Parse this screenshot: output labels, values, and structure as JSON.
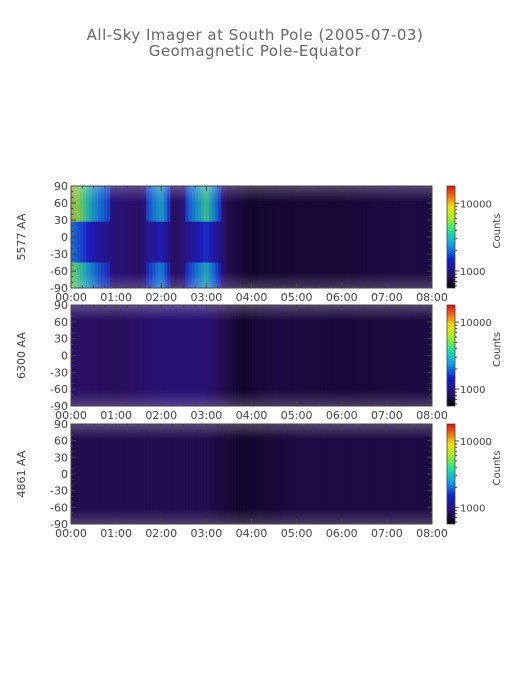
{
  "title": "All-Sky Imager at South Pole (2005-07-03)",
  "subtitle": "Geomagnetic Pole-Equator",
  "colors": {
    "background": "#2a1060",
    "dark_band": "#0a0418",
    "axis": "#444444"
  },
  "chart_data": [
    {
      "type": "heatmap",
      "ylabel": "5577 AA",
      "yticks": [
        "90",
        "60",
        "30",
        "0",
        "-30",
        "-60",
        "-90"
      ],
      "ylim": [
        -90,
        90
      ],
      "xticks": [
        "00:00",
        "01:00",
        "02:00",
        "03:00",
        "04:00",
        "05:00",
        "06:00",
        "07:00",
        "08:00"
      ],
      "xlim": [
        "00:00",
        "08:00"
      ],
      "colorbar": {
        "label": "Counts",
        "ticks": [
          "10000",
          "1000"
        ],
        "scale": "log"
      },
      "intensity_profile": [
        {
          "t": 0.0,
          "v": 0.85
        },
        {
          "t": 0.3,
          "v": 0.7
        },
        {
          "t": 0.6,
          "v": 0.5
        },
        {
          "t": 1.0,
          "v": 0.35
        },
        {
          "t": 1.5,
          "v": 0.3
        },
        {
          "t": 2.0,
          "v": 0.6
        },
        {
          "t": 2.3,
          "v": 0.25
        },
        {
          "t": 3.0,
          "v": 0.7
        },
        {
          "t": 3.5,
          "v": 0.2
        },
        {
          "t": 4.0,
          "v": 0.05
        },
        {
          "t": 5.0,
          "v": 0.1
        },
        {
          "t": 6.0,
          "v": 0.1
        },
        {
          "t": 7.0,
          "v": 0.15
        },
        {
          "t": 8.0,
          "v": 0.15
        }
      ]
    },
    {
      "type": "heatmap",
      "ylabel": "6300 AA",
      "yticks": [
        "90",
        "60",
        "30",
        "0",
        "-30",
        "-60",
        "-90"
      ],
      "ylim": [
        -90,
        90
      ],
      "xticks": [
        "00:00",
        "01:00",
        "02:00",
        "03:00",
        "04:00",
        "05:00",
        "06:00",
        "07:00",
        "08:00"
      ],
      "xlim": [
        "00:00",
        "08:00"
      ],
      "colorbar": {
        "label": "Counts",
        "ticks": [
          "10000",
          "1000"
        ],
        "scale": "log"
      },
      "intensity_profile": [
        {
          "t": 0.0,
          "v": 0.3
        },
        {
          "t": 1.0,
          "v": 0.25
        },
        {
          "t": 2.0,
          "v": 0.35
        },
        {
          "t": 3.0,
          "v": 0.35
        },
        {
          "t": 3.8,
          "v": 0.05
        },
        {
          "t": 4.5,
          "v": 0.15
        },
        {
          "t": 6.0,
          "v": 0.12
        },
        {
          "t": 8.0,
          "v": 0.15
        }
      ]
    },
    {
      "type": "heatmap",
      "ylabel": "4861 AA",
      "yticks": [
        "90",
        "60",
        "30",
        "0",
        "-30",
        "-60",
        "-90"
      ],
      "ylim": [
        -90,
        90
      ],
      "xticks": [
        "00:00",
        "01:00",
        "02:00",
        "03:00",
        "04:00",
        "05:00",
        "06:00",
        "07:00",
        "08:00"
      ],
      "xlim": [
        "00:00",
        "08:00"
      ],
      "colorbar": {
        "label": "Counts",
        "ticks": [
          "10000",
          "1000"
        ],
        "scale": "log"
      },
      "intensity_profile": [
        {
          "t": 0.0,
          "v": 0.2
        },
        {
          "t": 2.0,
          "v": 0.2
        },
        {
          "t": 3.0,
          "v": 0.2
        },
        {
          "t": 3.8,
          "v": 0.05
        },
        {
          "t": 5.0,
          "v": 0.15
        },
        {
          "t": 8.0,
          "v": 0.15
        }
      ]
    }
  ]
}
